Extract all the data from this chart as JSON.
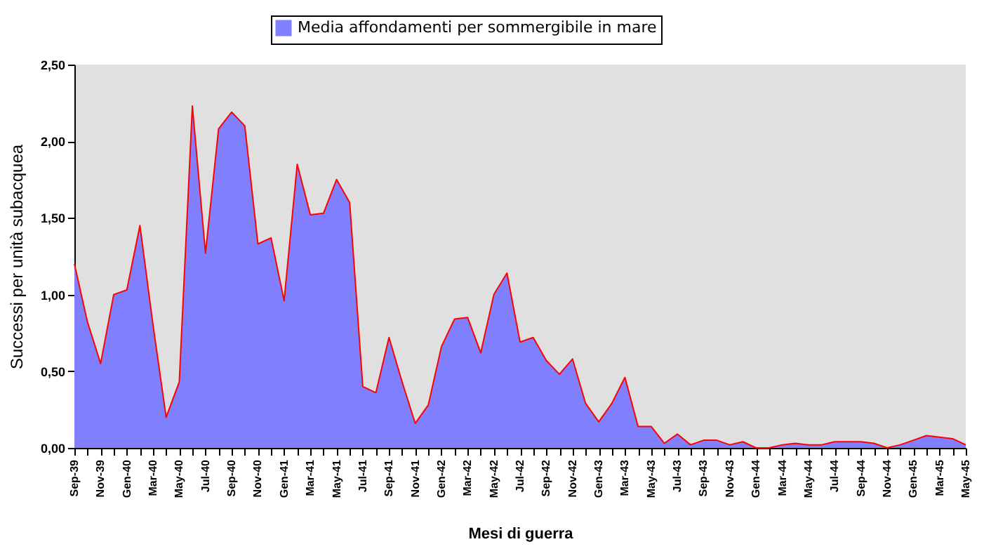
{
  "chart_data": {
    "type": "area",
    "xlabel": "Mesi di guerra",
    "ylabel": "Successi per unità subacquea",
    "categories": [
      "Sep-39",
      null,
      "Nov-39",
      null,
      "Gen-40",
      null,
      "Mar-40",
      null,
      "May-40",
      null,
      "Jul-40",
      null,
      "Sep-40",
      null,
      "Nov-40",
      null,
      "Gen-41",
      null,
      "Mar-41",
      null,
      "May-41",
      null,
      "Jul-41",
      null,
      "Sep-41",
      null,
      "Nov-41",
      null,
      "Gen-42",
      null,
      "Mar-42",
      null,
      "May-42",
      null,
      "Jul-42",
      null,
      "Sep-42",
      null,
      "Nov-42",
      null,
      "Gen-43",
      null,
      "Mar-43",
      null,
      "May-43",
      null,
      "Jul-43",
      null,
      "Sep-43",
      null,
      "Nov-43",
      null,
      "Gen-44",
      null,
      "Mar-44",
      null,
      "May-44",
      null,
      "Jul-44",
      null,
      "Sep-44",
      null,
      "Nov-44",
      null,
      "Gen-45",
      null,
      "Mar-45",
      null,
      "May-45"
    ],
    "series": [
      {
        "name": "Media affondamenti per sommergibile in mare",
        "color": "#8080ff",
        "values": [
          1.2,
          0.82,
          0.55,
          1.0,
          1.03,
          1.45,
          0.8,
          0.2,
          0.43,
          2.23,
          1.27,
          2.08,
          2.19,
          2.1,
          1.33,
          1.37,
          0.96,
          1.85,
          1.52,
          1.53,
          1.75,
          1.6,
          0.4,
          0.36,
          0.72,
          0.43,
          0.16,
          0.28,
          0.66,
          0.84,
          0.85,
          0.62,
          1.0,
          1.14,
          0.69,
          0.72,
          0.57,
          0.48,
          0.58,
          0.29,
          0.17,
          0.29,
          0.46,
          0.14,
          0.14,
          0.03,
          0.09,
          0.02,
          0.05,
          0.05,
          0.02,
          0.04,
          0.0,
          0.0,
          0.02,
          0.03,
          0.02,
          0.02,
          0.04,
          0.04,
          0.04,
          0.03,
          0.0,
          0.02,
          0.05,
          0.08,
          0.07,
          0.06,
          0.02
        ]
      }
    ],
    "ylim": [
      0,
      2.5
    ],
    "yticks": [
      {
        "value": 0,
        "label": "0,00"
      },
      {
        "value": 0.5,
        "label": "0,50"
      },
      {
        "value": 1,
        "label": "1,00"
      },
      {
        "value": 1.5,
        "label": "1,50"
      },
      {
        "value": 2,
        "label": "2,00"
      },
      {
        "value": 2.5,
        "label": "2,50"
      }
    ],
    "grid": false,
    "legend": "top"
  }
}
